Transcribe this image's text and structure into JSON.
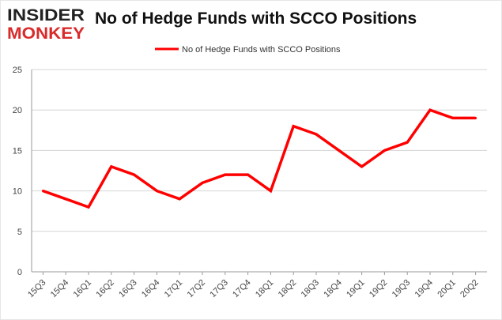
{
  "brand": {
    "line1": "INSIDER",
    "line2": "MONKEY",
    "color": "#d92b2b",
    "dark": "#222222"
  },
  "chart_data": {
    "type": "line",
    "title": "No of Hedge Funds with SCCO Positions",
    "xlabel": "",
    "ylabel": "",
    "categories": [
      "15Q3",
      "15Q4",
      "16Q1",
      "16Q2",
      "16Q3",
      "16Q4",
      "17Q1",
      "17Q2",
      "17Q3",
      "17Q4",
      "18Q1",
      "18Q2",
      "18Q3",
      "18Q4",
      "19Q1",
      "19Q2",
      "19Q3",
      "19Q4",
      "20Q1",
      "20Q2"
    ],
    "series": [
      {
        "name": "No of Hedge Funds with SCCO Positions",
        "color": "#ff0000",
        "values": [
          10,
          9,
          8,
          13,
          12,
          10,
          9,
          11,
          12,
          12,
          10,
          18,
          17,
          15,
          13,
          15,
          16,
          20,
          19,
          19
        ]
      }
    ],
    "ylim": [
      0,
      25
    ],
    "yticks": [
      0,
      5,
      10,
      15,
      20,
      25
    ],
    "grid": true,
    "legend_position": "top-center"
  }
}
